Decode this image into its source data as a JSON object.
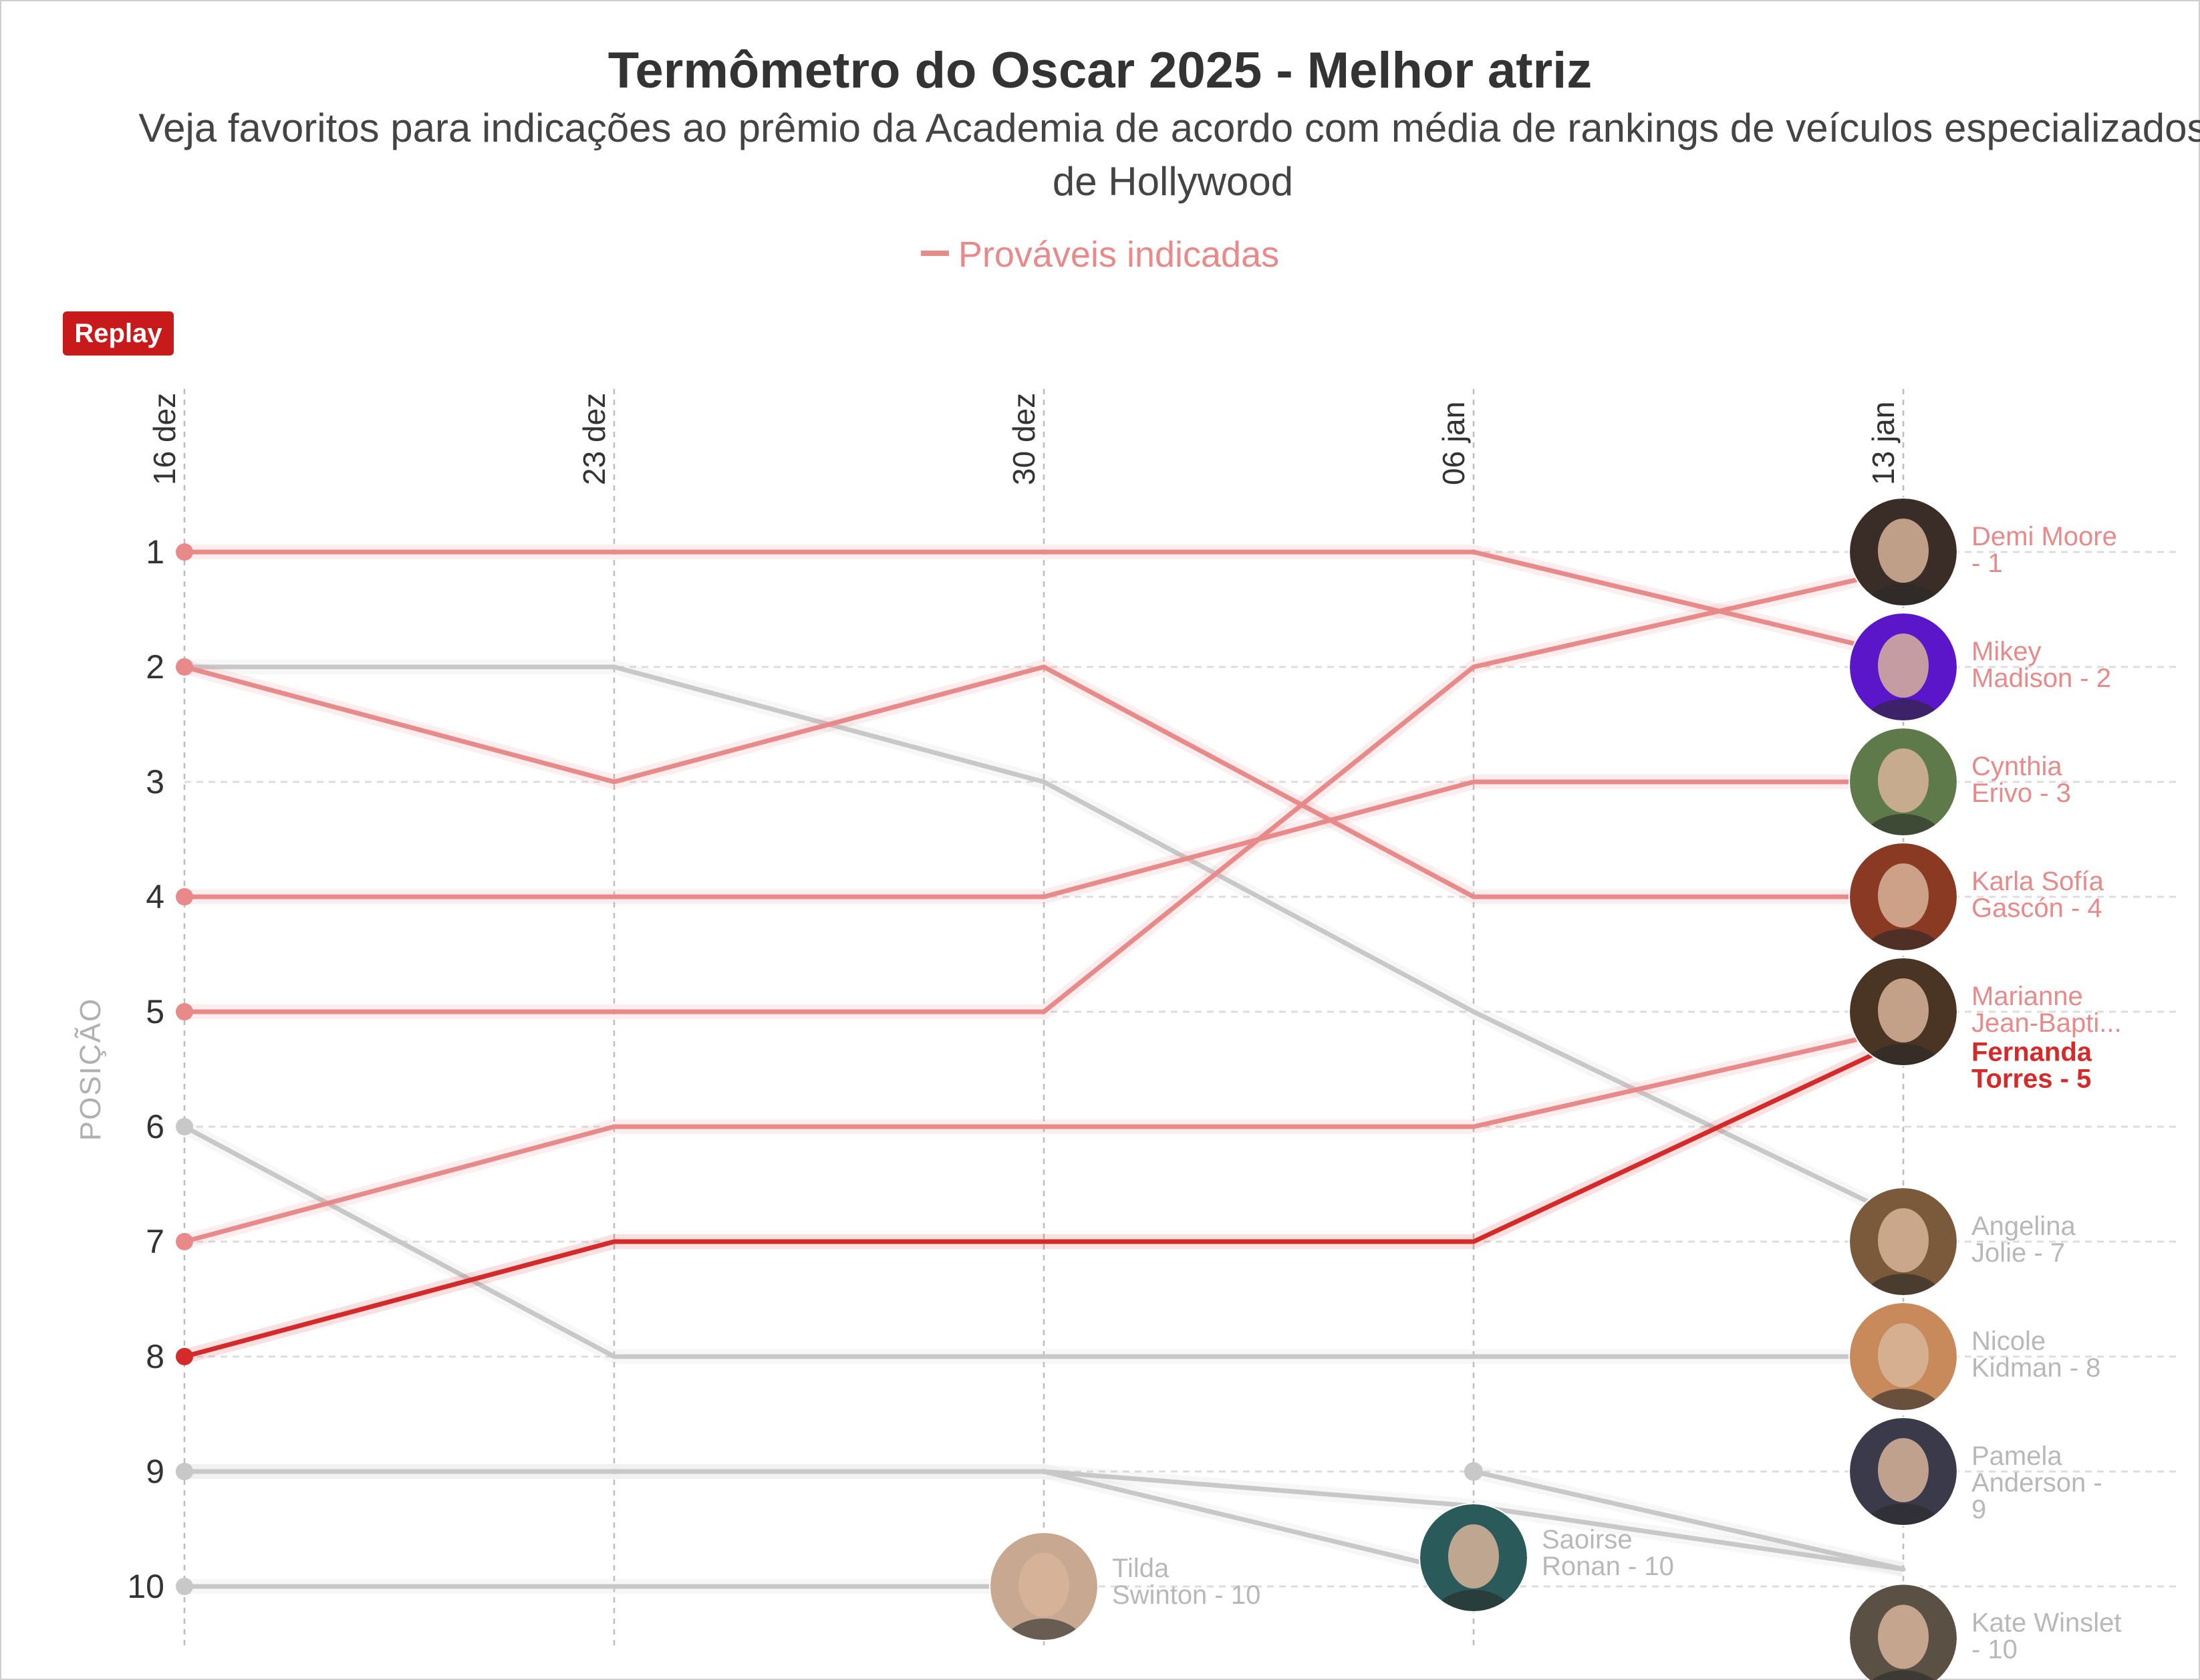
{
  "title": "Termômetro do Oscar 2025 - Melhor atriz",
  "subtitle": "Veja favoritos para indicações ao prêmio da Academia de acordo com média de rankings de veículos especializados de Hollywood",
  "legend_label": "Prováveis indicadas",
  "replay_label": "Replay",
  "chart_data": {
    "type": "line",
    "title": "Termômetro do Oscar 2025 - Melhor atriz",
    "subtitle": "Veja favoritos para indicações ao prêmio da Academia de acordo com média de rankings de veículos especializados de Hollywood",
    "ylabel": "POSIÇÃO",
    "x": [
      "16 dez",
      "23 dez",
      "30 dez",
      "06 jan",
      "13 jan"
    ],
    "y_ticks": [
      "1",
      "2",
      "3",
      "4",
      "5",
      "6",
      "7",
      "8",
      "9",
      "10"
    ],
    "ylim": [
      1,
      10
    ],
    "y_inverted": true,
    "grid": true,
    "legend": "top-center",
    "colors": {
      "nominee": "#e88a8a",
      "highlight": "#d42a2a",
      "other": "#c8c8c8"
    },
    "series": [
      {
        "name": "Demi Moore",
        "label": "Demi Moore - 1",
        "group": "nominee",
        "values": [
          5,
          5,
          5,
          2,
          1.15
        ]
      },
      {
        "name": "Mikey Madison",
        "label": "Mikey Madison - 2",
        "group": "nominee",
        "values": [
          1,
          1,
          1,
          1,
          1.9
        ]
      },
      {
        "name": "Cynthia Erivo",
        "label": "Cynthia Erivo - 3",
        "group": "nominee",
        "values": [
          4,
          4,
          4,
          3,
          3
        ]
      },
      {
        "name": "Karla Sofía Gascón",
        "label": "Karla Sofía Gascón - 4",
        "group": "nominee",
        "values": [
          2,
          3,
          2,
          4,
          4
        ]
      },
      {
        "name": "Marianne Jean-Baptiste",
        "label": "Marianne Jean-Bapti...",
        "group": "nominee",
        "values": [
          7,
          6,
          6,
          6,
          5.15
        ]
      },
      {
        "name": "Fernanda Torres",
        "label": "Fernanda Torres - 5",
        "group": "highlight",
        "values": [
          8,
          7,
          7,
          7,
          5.25
        ]
      },
      {
        "name": "Angelina Jolie",
        "label": "Angelina Jolie - 7",
        "group": "other",
        "values": [
          2,
          2,
          3,
          5,
          6.8
        ]
      },
      {
        "name": "Nicole Kidman",
        "label": "Nicole Kidman - 8",
        "group": "other",
        "values": [
          6,
          8,
          8,
          8,
          8
        ]
      },
      {
        "name": "Pamela Anderson",
        "label": "Pamela Anderson - 9",
        "group": "other",
        "values": [
          null,
          null,
          null,
          9,
          9.85
        ]
      },
      {
        "name": "Kate Winslet",
        "label": "Kate Winslet - 10",
        "group": "other",
        "values": [
          9,
          9,
          9,
          9.3,
          9.85
        ]
      },
      {
        "name": "Saoirse Ronan",
        "label": "Saoirse Ronan - 10",
        "group": "other",
        "values": [
          9,
          9,
          9,
          9.9,
          null
        ]
      },
      {
        "name": "Tilda Swinton",
        "label": "Tilda Swinton - 10",
        "group": "other",
        "values": [
          10,
          10,
          10,
          null,
          null
        ]
      }
    ],
    "end_labels": [
      {
        "lines": [
          "Demi Moore",
          "- 1"
        ],
        "y": 1,
        "group": "nominee",
        "avatar": "#3a2c26"
      },
      {
        "lines": [
          "Mikey",
          "Madison - 2"
        ],
        "y": 2,
        "group": "nominee",
        "avatar": "#5a16c8"
      },
      {
        "lines": [
          "Cynthia",
          "Erivo - 3"
        ],
        "y": 3,
        "group": "nominee",
        "avatar": "#5e7a4a"
      },
      {
        "lines": [
          "Karla Sofía",
          "Gascón - 4"
        ],
        "y": 4,
        "group": "nominee",
        "avatar": "#8a3a22"
      },
      {
        "lines": [
          "Marianne",
          "Jean-Bapti..."
        ],
        "y": 5,
        "group": "nominee",
        "avatar": "#4a3424"
      },
      {
        "lines": [
          "Fernanda",
          "Torres - 5"
        ],
        "y": 5.45,
        "group": "highlight",
        "avatar": null
      },
      {
        "lines": [
          "Angelina",
          "Jolie - 7"
        ],
        "y": 7,
        "group": "other",
        "avatar": "#7a5a3a"
      },
      {
        "lines": [
          "Nicole",
          "Kidman - 8"
        ],
        "y": 8,
        "group": "other",
        "avatar": "#c88a5a"
      },
      {
        "lines": [
          "Pamela",
          "Anderson -",
          "9"
        ],
        "y": 9,
        "group": "other",
        "avatar": "#3a3a4a"
      },
      {
        "lines": [
          "Kate Winslet",
          "- 10"
        ],
        "y": 10.45,
        "group": "other",
        "avatar": "#5a5044"
      }
    ],
    "inline_labels": [
      {
        "lines": [
          "Tilda",
          "Swinton - 10"
        ],
        "x": 2,
        "y": 10,
        "avatar": "#c8a890"
      },
      {
        "lines": [
          "Saoirse",
          "Ronan - 10"
        ],
        "x": 3,
        "y": 9.75,
        "avatar": "#2a5a5a"
      }
    ]
  }
}
